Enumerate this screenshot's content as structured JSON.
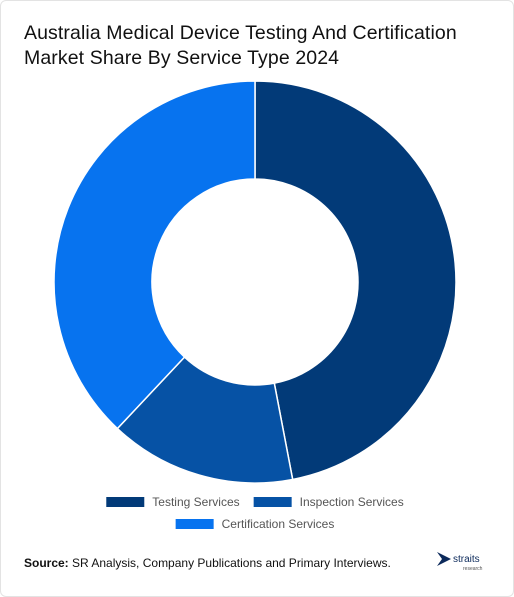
{
  "title": "Australia Medical Device Testing And Certification Market Share By Service Type 2024",
  "source": {
    "label": "Source:",
    "text": "SR Analysis, Company Publications and Primary Interviews."
  },
  "logo": {
    "word": "straits",
    "sub": "research"
  },
  "colors": {
    "background": "#ffffff",
    "slice_separator": "#ffffff"
  },
  "chart_data": {
    "type": "pie",
    "donut": true,
    "categories": [
      "Testing Services",
      "Inspection Services",
      "Certification Services"
    ],
    "values": [
      47,
      15,
      38
    ],
    "colors": [
      "#023a78",
      "#0652a5",
      "#0773ef"
    ],
    "legend_position": "bottom"
  }
}
